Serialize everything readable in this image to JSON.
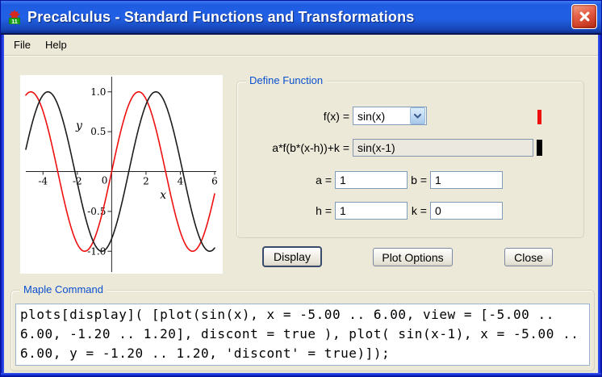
{
  "titlebar": {
    "title": "Precalculus - Standard Functions and Transformations",
    "app_icon": "maple-11-icon",
    "close_icon": "close-x-icon"
  },
  "menu": {
    "items": [
      "File",
      "Help"
    ]
  },
  "define_function": {
    "legend": "Define Function",
    "fx_label": "f(x) =",
    "fx_value": "sin(x)",
    "fx_color": "#ee1010",
    "expr_label": "a*f(b*(x-h))+k =",
    "expr_value": "sin(x-1)",
    "expr_color": "#000000",
    "params": [
      {
        "label": "a =",
        "value": "1"
      },
      {
        "label": "b =",
        "value": "1"
      },
      {
        "label": "h =",
        "value": "1"
      },
      {
        "label": "k =",
        "value": "0"
      }
    ]
  },
  "buttons": {
    "display": "Display",
    "plot_options": "Plot Options",
    "close": "Close"
  },
  "maple_command": {
    "legend": "Maple Command",
    "text": "plots[display]( [plot(sin(x), x = -5.00 .. 6.00, view = [-5.00 ..\n6.00, -1.20 .. 1.20], discont = true ), plot( sin(x-1), x = -5.00 ..\n6.00, y = -1.20 .. 1.20, 'discont' = true)]);"
  },
  "chart_data": {
    "type": "line",
    "title": "",
    "xlabel": "x",
    "ylabel": "y",
    "xlim": [
      -5,
      6
    ],
    "ylim": [
      -1.2,
      1.2
    ],
    "grid": false,
    "legend_position": "none",
    "x_ticks": [
      {
        "v": -4,
        "label": "-4"
      },
      {
        "v": -2,
        "label": "-2"
      },
      {
        "v": 2,
        "label": "2"
      },
      {
        "v": 4,
        "label": "4"
      },
      {
        "v": 6,
        "label": "6"
      }
    ],
    "y_ticks": [
      {
        "v": 1.0,
        "label": "1.0"
      },
      {
        "v": 0.5,
        "label": "0.5"
      },
      {
        "v": -0.5,
        "label": "-0.5"
      },
      {
        "v": -1.0,
        "label": "-1.0"
      }
    ],
    "origin_label": "0",
    "xlabel_pos": [
      3.0,
      -0.34
    ],
    "ylabel_pos": [
      -1.9,
      0.53
    ],
    "series": [
      {
        "name": "sin(x)",
        "fn": "sin",
        "shift": 0,
        "color": "#ee1010"
      },
      {
        "name": "sin(x-1)",
        "fn": "sin",
        "shift": 1,
        "color": "#1c1c1c"
      }
    ]
  }
}
